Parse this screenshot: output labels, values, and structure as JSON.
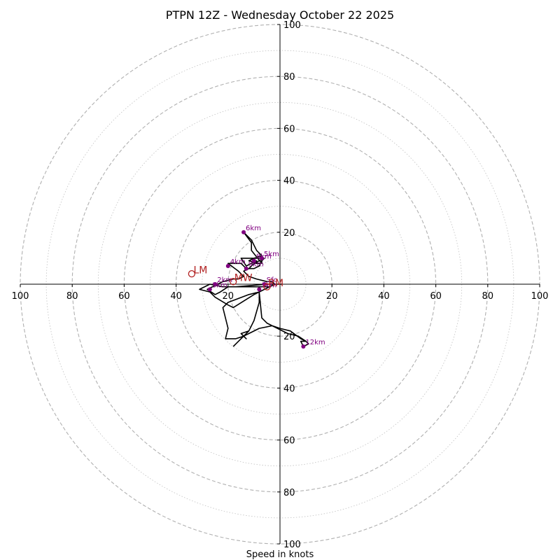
{
  "chart_data": {
    "type": "hodograph",
    "title": "PTPN 12Z - Wednesday October 22 2025",
    "xlabel": "Speed in knots",
    "range": [
      -100,
      100
    ],
    "ring_major": [
      20,
      40,
      60,
      80,
      100
    ],
    "ring_minor": [
      10,
      30,
      50,
      70,
      90
    ],
    "x_tick_labels": [
      "100",
      "80",
      "60",
      "40",
      "20",
      "20",
      "40",
      "60",
      "80",
      "100"
    ],
    "x_tick_values": [
      -100,
      -80,
      -60,
      -40,
      -20,
      20,
      40,
      60,
      80,
      100
    ],
    "y_tick_labels": [
      "100",
      "80",
      "60",
      "40",
      "20",
      "20",
      "40",
      "60",
      "80",
      "100"
    ],
    "y_tick_values": [
      100,
      80,
      60,
      40,
      20,
      -20,
      -40,
      -60,
      -80,
      -100
    ],
    "trace": [
      [
        1,
        0
      ],
      [
        -5,
        0
      ],
      [
        -17,
        -1
      ],
      [
        -22,
        -1
      ],
      [
        -27,
        0
      ],
      [
        -31,
        -2
      ],
      [
        -27,
        -3
      ],
      [
        -25,
        -5
      ],
      [
        -20,
        -8
      ],
      [
        -18,
        -9
      ],
      [
        -10,
        -4
      ],
      [
        -4,
        -1
      ],
      [
        -8,
        -1
      ],
      [
        -12,
        -1
      ],
      [
        -20,
        -1
      ],
      [
        -23,
        -3
      ],
      [
        -25,
        -4
      ],
      [
        -28,
        -2
      ],
      [
        -22,
        1
      ],
      [
        -18,
        2
      ],
      [
        -16,
        2
      ],
      [
        -14,
        3
      ],
      [
        -16,
        5
      ],
      [
        -20,
        8
      ],
      [
        -15,
        8
      ],
      [
        -13,
        6
      ],
      [
        -10,
        6
      ],
      [
        -8,
        7
      ],
      [
        -7,
        9
      ],
      [
        -6,
        10
      ],
      [
        -8,
        9
      ],
      [
        -10,
        8
      ],
      [
        -9,
        9
      ],
      [
        -13,
        7
      ],
      [
        -15,
        10
      ],
      [
        -12,
        10
      ],
      [
        -7,
        10
      ],
      [
        -7,
        8
      ],
      [
        -11,
        13
      ],
      [
        -11,
        16
      ],
      [
        -14,
        20
      ],
      [
        -11,
        17
      ],
      [
        -9,
        13
      ],
      [
        -7,
        11
      ],
      [
        -10,
        10
      ],
      [
        -12,
        9
      ],
      [
        -8,
        8
      ],
      [
        -10,
        8
      ],
      [
        -12,
        6
      ],
      [
        -14,
        5
      ],
      [
        -12,
        3
      ],
      [
        -9,
        2
      ],
      [
        -5,
        1
      ],
      [
        -3,
        1
      ],
      [
        -2,
        0
      ],
      [
        -6,
        -2
      ],
      [
        -8,
        -3
      ],
      [
        -8,
        -7
      ],
      [
        -10,
        -14
      ],
      [
        -12,
        -18
      ],
      [
        -14,
        -20
      ],
      [
        -17,
        -21
      ],
      [
        -19,
        -21
      ],
      [
        -21,
        -21
      ],
      [
        -20,
        -17
      ],
      [
        -22,
        -9
      ],
      [
        -20,
        -7
      ],
      [
        -12,
        -4
      ],
      [
        -8,
        -3
      ],
      [
        -7,
        -13
      ],
      [
        -5,
        -15
      ],
      [
        -3,
        -16
      ],
      [
        0,
        -17
      ],
      [
        4,
        -18
      ],
      [
        8,
        -21
      ],
      [
        10,
        -22
      ],
      [
        8,
        -22
      ],
      [
        9,
        -24
      ],
      [
        11,
        -23
      ],
      [
        10,
        -22
      ],
      [
        7,
        -20
      ],
      [
        3,
        -19
      ],
      [
        -3,
        -16
      ],
      [
        -8,
        -17
      ],
      [
        -12,
        -19
      ],
      [
        -14,
        -20
      ],
      [
        -13,
        -21
      ],
      [
        -15,
        -19
      ],
      [
        -12,
        -18
      ],
      [
        -17,
        -23
      ],
      [
        -18,
        -24
      ]
    ],
    "height_markers": [
      {
        "label": "Sfc",
        "u": -6,
        "v": 0
      },
      {
        "label": "1km",
        "u": -8,
        "v": -2
      },
      {
        "label": "2km",
        "u": -25,
        "v": 0
      },
      {
        "label": "3km",
        "u": -27,
        "v": -2
      },
      {
        "label": "4km",
        "u": -20,
        "v": 7
      },
      {
        "label": "5km",
        "u": -7,
        "v": 10
      },
      {
        "label": "6km",
        "u": -14,
        "v": 20
      },
      {
        "label": "8km",
        "u": -10,
        "v": 9
      },
      {
        "label": "9km",
        "u": -13,
        "v": 6
      },
      {
        "label": "12km",
        "u": 9,
        "v": -24
      }
    ],
    "motion_markers": [
      {
        "label": "LM",
        "u": -34,
        "v": 4,
        "label_dx": 0.7,
        "label_dy": 0.2
      },
      {
        "label": "MW",
        "u": -18,
        "v": 1,
        "label_dx": 0.4,
        "label_dy": 0.2
      },
      {
        "label": "RM",
        "u": -5,
        "v": -1,
        "label_dx": 0.5,
        "label_dy": 0.2
      }
    ],
    "colors": {
      "trace": "#000000",
      "height_markers": "#800080",
      "motion_markers": "#b22222",
      "ring": "#b0b0b0",
      "axis": "#000000"
    }
  }
}
